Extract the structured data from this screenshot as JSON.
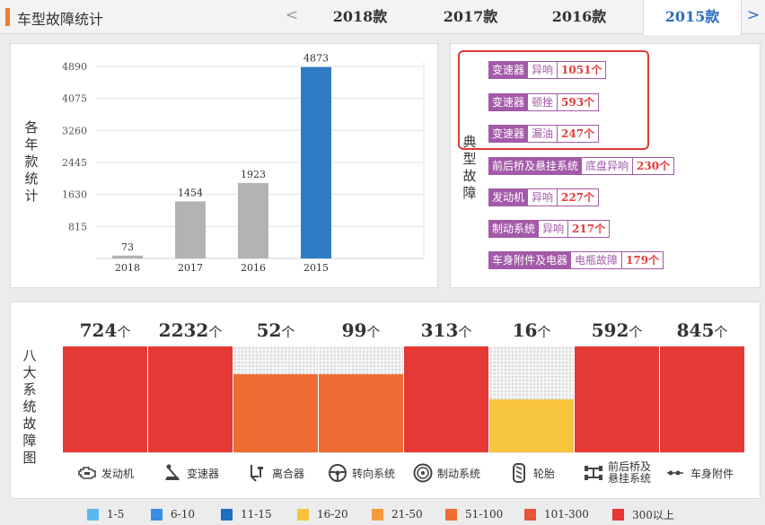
{
  "header": {
    "title": "车型故障统计",
    "prev_arrow": "<",
    "next_arrow": ">",
    "tabs": [
      {
        "label": "2018款",
        "active": false
      },
      {
        "label": "2017款",
        "active": false
      },
      {
        "label": "2016款",
        "active": false
      },
      {
        "label": "2015款",
        "active": true
      }
    ]
  },
  "year_chart": {
    "vertical_label": [
      "各",
      "年",
      "款",
      "统",
      "计"
    ],
    "chart_data": {
      "type": "bar",
      "categories": [
        "2018",
        "2017",
        "2016",
        "2015"
      ],
      "values": [
        73,
        1454,
        1923,
        4873
      ],
      "yticks": [
        815,
        1630,
        2445,
        3260,
        4075,
        4890
      ],
      "ylim": [
        0,
        4890
      ],
      "colors": [
        "#b3b3b3",
        "#b3b3b3",
        "#b3b3b3",
        "#2f7bc4"
      ],
      "grid": "horizontal"
    }
  },
  "typical_faults": {
    "vertical_label": [
      "典",
      "型",
      "故",
      "障"
    ],
    "items": [
      {
        "category": "变速器",
        "type": "异响",
        "count": "1051个"
      },
      {
        "category": "变速器",
        "type": "顿挫",
        "count": "593个"
      },
      {
        "category": "变速器",
        "type": "漏油",
        "count": "247个"
      },
      {
        "category": "前后桥及悬挂系统",
        "type": "底盘异响",
        "count": "230个"
      },
      {
        "category": "发动机",
        "type": "异响",
        "count": "227个"
      },
      {
        "category": "制动系统",
        "type": "异响",
        "count": "217个"
      },
      {
        "category": "车身附件及电器",
        "type": "电瓶故障",
        "count": "179个"
      }
    ]
  },
  "systems": {
    "vertical_label": [
      "八",
      "大",
      "系",
      "统",
      "故",
      "障",
      "图"
    ],
    "unit": "个",
    "items": [
      {
        "name": "发动机",
        "icon": "engine-icon",
        "count": "724",
        "level": 1.0,
        "color": "#e53935"
      },
      {
        "name": "变速器",
        "icon": "gear-shift-icon",
        "count": "2232",
        "level": 1.0,
        "color": "#e53935"
      },
      {
        "name": "离合器",
        "icon": "clutch-icon",
        "count": "52",
        "level": 0.74,
        "color": "#ef6c34"
      },
      {
        "name": "转向系统",
        "icon": "steering-wheel-icon",
        "count": "99",
        "level": 0.74,
        "color": "#ef6c34"
      },
      {
        "name": "制动系统",
        "icon": "brake-disc-icon",
        "count": "313",
        "level": 1.0,
        "color": "#e53935"
      },
      {
        "name": "轮胎",
        "icon": "tire-icon",
        "count": "16",
        "level": 0.5,
        "color": "#f7c43e"
      },
      {
        "name": "前后桥及悬挂系统",
        "name_lines": [
          "前后桥及",
          "悬挂系统"
        ],
        "icon": "axle-icon",
        "count": "592",
        "level": 1.0,
        "color": "#e53935"
      },
      {
        "name": "车身附件",
        "icon": "body-parts-icon",
        "count": "845",
        "level": 1.0,
        "color": "#e53935"
      }
    ]
  },
  "legend": [
    {
      "label": "1-5",
      "color": "#5bb8ee"
    },
    {
      "label": "6-10",
      "color": "#3a8ee6"
    },
    {
      "label": "11-15",
      "color": "#1e6fc0"
    },
    {
      "label": "16-20",
      "color": "#f7c43e"
    },
    {
      "label": "21-50",
      "color": "#f59a3c"
    },
    {
      "label": "51-100",
      "color": "#ef6c34"
    },
    {
      "label": "101-300",
      "color": "#e8553a"
    },
    {
      "label": "300以上",
      "color": "#e53935"
    }
  ]
}
